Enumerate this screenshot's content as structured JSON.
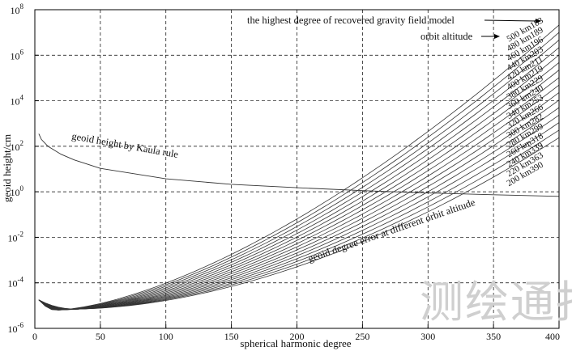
{
  "chart_data": {
    "type": "line",
    "xlabel": "spherical harmonic degree",
    "ylabel": "geoid height/cm",
    "xlim": [
      0,
      400
    ],
    "ylim_log10": [
      -6,
      8
    ],
    "y_scale": "log",
    "grid": true,
    "x_ticks": [
      "0",
      "50",
      "100",
      "150",
      "200",
      "250",
      "300",
      "350",
      "400"
    ],
    "y_tick_exponents": [
      "-6",
      "-4",
      "-2",
      "0",
      "2",
      "4",
      "6",
      "8"
    ],
    "y_tick_base": "10",
    "annotations": {
      "highest_degree": "the highest degree of  recovered gravity field model",
      "orbit_altitude": "orbit  altitude",
      "kaula_label": "geoid  height by Kaula  rule",
      "error_label": "geoid  degree  error at different  orbit  altitude"
    },
    "kaula_series": {
      "x": [
        3,
        5,
        10,
        20,
        30,
        50,
        100,
        150,
        200,
        250,
        300,
        350,
        400
      ],
      "log10": [
        2.55,
        2.3,
        2.0,
        1.65,
        1.4,
        1.03,
        0.57,
        0.33,
        0.18,
        0.05,
        -0.05,
        -0.13,
        -0.2
      ]
    },
    "error_series": [
      {
        "label": "500 km183",
        "end_x": 400,
        "end_log10": 7.33
      },
      {
        "label": "480 km189",
        "end_x": 400,
        "end_log10": 7.0
      },
      {
        "label": "460 km196",
        "end_x": 400,
        "end_log10": 6.67
      },
      {
        "label": "440 km203",
        "end_x": 400,
        "end_log10": 6.34
      },
      {
        "label": "420 km211",
        "end_x": 400,
        "end_log10": 6.01
      },
      {
        "label": "400 km219",
        "end_x": 400,
        "end_log10": 5.68
      },
      {
        "label": "380 km229",
        "end_x": 400,
        "end_log10": 5.35
      },
      {
        "label": "360 km240",
        "end_x": 400,
        "end_log10": 5.02
      },
      {
        "label": "340 km253",
        "end_x": 400,
        "end_log10": 4.69
      },
      {
        "label": "320 km266",
        "end_x": 400,
        "end_log10": 4.36
      },
      {
        "label": "300 km282",
        "end_x": 400,
        "end_log10": 4.03
      },
      {
        "label": "280 km299",
        "end_x": 400,
        "end_log10": 3.7
      },
      {
        "label": "260 km318",
        "end_x": 400,
        "end_log10": 3.37
      },
      {
        "label": "240 km339",
        "end_x": 400,
        "end_log10": 3.04
      },
      {
        "label": "220 km363",
        "end_x": 400,
        "end_log10": 2.71
      },
      {
        "label": "200 km390",
        "end_x": 400,
        "end_log10": 2.38
      }
    ],
    "error_series_start": {
      "x": 3,
      "log10": -4.75
    },
    "error_series_min": {
      "x": 16,
      "log10": -5.2
    }
  },
  "watermark": "测绘通报"
}
